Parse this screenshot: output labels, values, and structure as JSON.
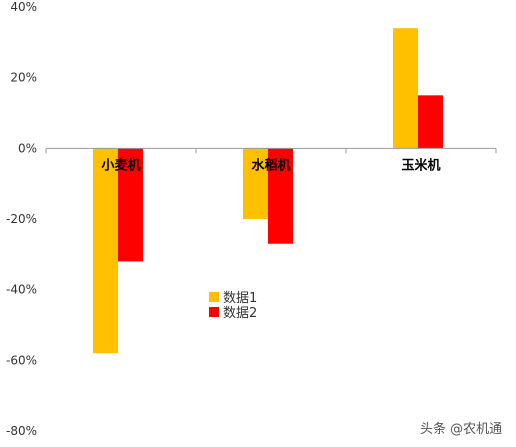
{
  "chart_data": {
    "type": "bar",
    "categories": [
      "小麦机",
      "水稻机",
      "玉米机"
    ],
    "series": [
      {
        "name": "数据1",
        "values": [
          -58,
          -20,
          34
        ],
        "color": "#FFC000"
      },
      {
        "name": "数据2",
        "values": [
          -32,
          -27,
          15
        ],
        "color": "#FF0000"
      }
    ],
    "ylim": [
      -80,
      40
    ],
    "yticks": [
      40,
      20,
      0,
      -20,
      -40,
      -60,
      -80
    ],
    "ytick_labels": [
      "40%",
      "20%",
      "0%",
      "-20%",
      "-40%",
      "-60%",
      "-80%"
    ],
    "title": "",
    "xlabel": "",
    "ylabel": "",
    "grid": false,
    "legend_position": "center"
  },
  "watermark": "头条 @农机通"
}
